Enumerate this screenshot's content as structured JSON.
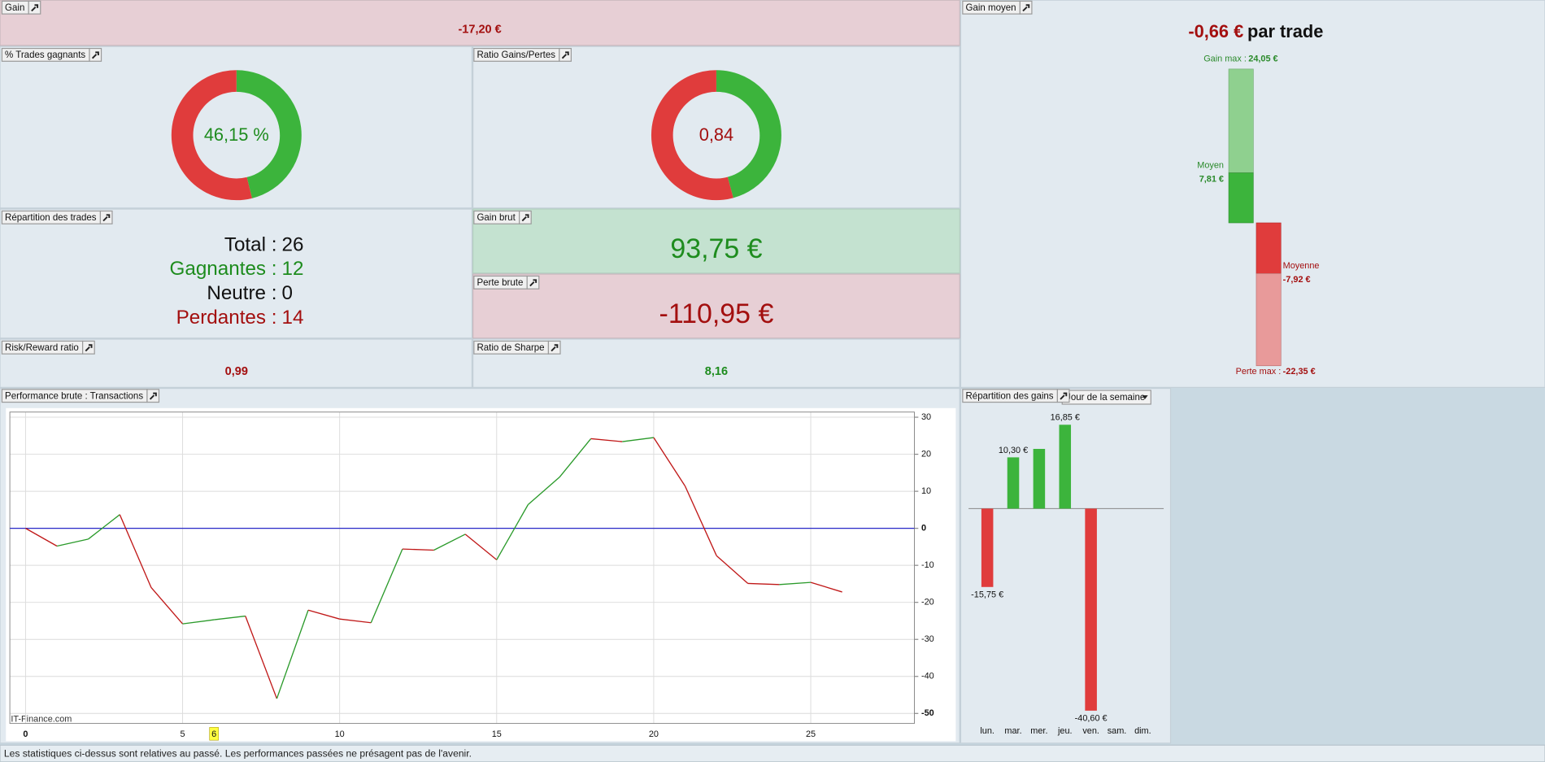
{
  "gain": {
    "title": "Gain",
    "value": "-17,20 €"
  },
  "trades_gagnants": {
    "title": "% Trades gagnants",
    "value": 46.15,
    "value_label": "46,15 %",
    "win_color": "#3cb43c",
    "loss_color": "#e03c3c"
  },
  "ratio_gains_pertes": {
    "title": "Ratio Gains/Pertes",
    "value": 0.84,
    "value_label": "0,84"
  },
  "repartition_trades": {
    "title": "Répartition des trades",
    "rows": [
      {
        "label": "Total :",
        "value": 26
      },
      {
        "label": "Gagnantes :",
        "value": 12
      },
      {
        "label": "Neutre :",
        "value": 0
      },
      {
        "label": "Perdantes :",
        "value": 14
      }
    ]
  },
  "gain_brut": {
    "title": "Gain brut",
    "value": 93.75,
    "value_label": "93,75 €"
  },
  "perte_brut": {
    "title": "Perte brute",
    "value": -110.95,
    "value_label": "-110,95 €"
  },
  "risk_reward": {
    "title": "Risk/Reward ratio",
    "value": "0,99"
  },
  "sharpe": {
    "title": "Ratio de Sharpe",
    "value": "8,16"
  },
  "gain_moyen": {
    "title": "Gain moyen",
    "headline": "-0,66 €",
    "headline_suffix": "par trade",
    "bars": {
      "names": [
        "Gain max :",
        "Moyen",
        "Moyenne",
        "Perte max :"
      ],
      "values": [
        24.05,
        7.81,
        -7.92,
        -22.35
      ],
      "value_labels": [
        "24,05 €",
        "7,81 €",
        "-7,92 €",
        "-22,35 €"
      ]
    }
  },
  "performance": {
    "title": "Performance brute : Transactions",
    "watermark": "IT-Finance.com",
    "chart": {
      "type": "line",
      "x": [
        0,
        1,
        2,
        3,
        4,
        5,
        6,
        7,
        8,
        9,
        10,
        11,
        12,
        13,
        14,
        15,
        16,
        17,
        18,
        19,
        20,
        21,
        22,
        23,
        24,
        25,
        26
      ],
      "values": [
        0,
        -4.8,
        -2.9,
        3.7,
        -16,
        -25.8,
        -24.7,
        -23.7,
        -46,
        -22.1,
        -24.5,
        -25.5,
        -5.6,
        -5.9,
        -1.6,
        -8.5,
        6.4,
        13.8,
        24.2,
        23.4,
        24.5,
        11.4,
        -7.4,
        -14.9,
        -15.2,
        -14.6,
        -17.2
      ],
      "xlim": [
        -0.5,
        28.3
      ],
      "ylim": [
        -52.7,
        31.4
      ],
      "xticks": [
        0,
        5,
        10,
        15,
        20,
        25
      ],
      "yticks": [
        30,
        20,
        10,
        0,
        -10,
        -20,
        -30,
        -40,
        -50
      ],
      "highlight_x": 6,
      "grid": true,
      "up_color": "#2a9a2a",
      "down_color": "#c01818",
      "zero_line_color": "#2828c8"
    }
  },
  "repartition_gains": {
    "title": "Répartition des gains",
    "selector": "Jour de la semaine",
    "chart": {
      "type": "bar",
      "categories": [
        "lun.",
        "mar.",
        "mer.",
        "jeu.",
        "ven.",
        "sam.",
        "dim."
      ],
      "values": [
        -15.75,
        10.3,
        12.0,
        16.85,
        -40.6,
        null,
        null
      ],
      "value_labels": [
        "-15,75 €",
        "10,30 €",
        null,
        "16,85 €",
        "-40,60 €",
        null,
        null
      ],
      "up_color": "#3cb43c",
      "down_color": "#e03c3c"
    }
  },
  "footer": "Les statistiques ci-dessus sont relatives au passé. Les performances passées ne présagent pas de l'avenir."
}
